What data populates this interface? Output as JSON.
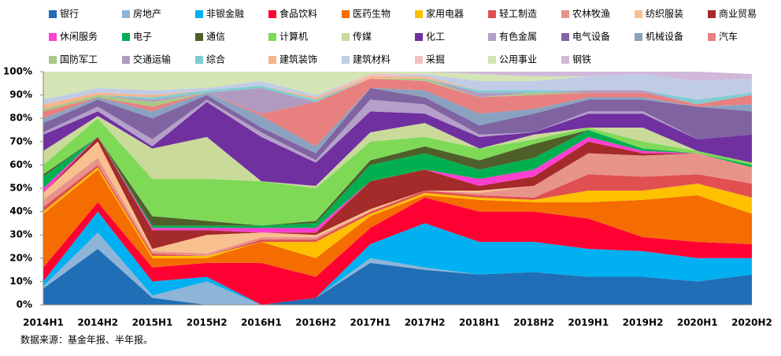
{
  "chart_data": {
    "type": "stacked-area",
    "categories": [
      "2014H1",
      "2014H2",
      "2015H1",
      "2015H2",
      "2016H1",
      "2016H2",
      "2017H1",
      "2017H2",
      "2018H1",
      "2018H2",
      "2019H1",
      "2019H2",
      "2020H1",
      "2020H2"
    ],
    "ylim": [
      0,
      100
    ],
    "yticks": [
      {
        "value": 0,
        "label": "0%"
      },
      {
        "value": 10,
        "label": "10%"
      },
      {
        "value": 20,
        "label": "20%"
      },
      {
        "value": 30,
        "label": "30%"
      },
      {
        "value": 40,
        "label": "40%"
      },
      {
        "value": 50,
        "label": "50%"
      },
      {
        "value": 60,
        "label": "60%"
      },
      {
        "value": 70,
        "label": "70%"
      },
      {
        "value": 80,
        "label": "80%"
      },
      {
        "value": 90,
        "label": "90%"
      },
      {
        "value": 100,
        "label": "100%"
      }
    ],
    "source": "数据来源：基金年报、半年报。",
    "series": [
      {
        "name": "银行",
        "color": "#1f6eb6",
        "values": [
          7,
          24,
          3,
          0,
          0,
          3,
          18,
          15,
          13,
          14,
          12,
          12,
          10,
          13
        ]
      },
      {
        "name": "房地产",
        "color": "#8eb4d8",
        "values": [
          1,
          7,
          1,
          10,
          0,
          0,
          2,
          1,
          0,
          0,
          0,
          0,
          0,
          0
        ]
      },
      {
        "name": "非银金融",
        "color": "#00b0f0",
        "values": [
          2,
          9,
          6,
          2,
          0,
          0,
          6,
          19,
          14,
          13,
          12,
          11,
          10,
          7
        ]
      },
      {
        "name": "食品饮料",
        "color": "#ff0033",
        "values": [
          6,
          4,
          6,
          6,
          18,
          9,
          7,
          11,
          13,
          13,
          13,
          6,
          7,
          6
        ]
      },
      {
        "name": "医药生物",
        "color": "#f56c00",
        "values": [
          23,
          14,
          4,
          2,
          9,
          8,
          5,
          1,
          5,
          4,
          7,
          16,
          20,
          13
        ]
      },
      {
        "name": "家用电器",
        "color": "#ffc000",
        "values": [
          1,
          1,
          1,
          1,
          0,
          7,
          1,
          1,
          1,
          1,
          5,
          4,
          5,
          7
        ]
      },
      {
        "name": "轻工制造",
        "color": "#e05050",
        "values": [
          2,
          1,
          1,
          0,
          1,
          1,
          1,
          1,
          1,
          1,
          7,
          6,
          4,
          6
        ]
      },
      {
        "name": "农林牧渔",
        "color": "#e8938a",
        "values": [
          3,
          3,
          1,
          1,
          1,
          1,
          0,
          0,
          1,
          5,
          9,
          9,
          9,
          7
        ]
      },
      {
        "name": "纺织服装",
        "color": "#f9c08f",
        "values": [
          3,
          7,
          1,
          8,
          2,
          1,
          1,
          0,
          1,
          0,
          0,
          0,
          0,
          0
        ]
      },
      {
        "name": "商业贸易",
        "color": "#a52a2a",
        "values": [
          0,
          2,
          8,
          2,
          0,
          1,
          12,
          9,
          2,
          4,
          5,
          1,
          0,
          0
        ]
      },
      {
        "name": "休闲服务",
        "color": "#ff3fd0",
        "values": [
          2,
          0,
          1,
          1,
          2,
          2,
          0,
          0,
          3,
          3,
          2,
          1,
          0,
          0
        ]
      },
      {
        "name": "电子",
        "color": "#00b050",
        "values": [
          5,
          0,
          1,
          1,
          1,
          2,
          7,
          7,
          4,
          5,
          3,
          1,
          0,
          1
        ]
      },
      {
        "name": "通信",
        "color": "#4f5f2a",
        "values": [
          1,
          0,
          4,
          2,
          0,
          1,
          2,
          3,
          4,
          6,
          0,
          0,
          0,
          0
        ]
      },
      {
        "name": "计算机",
        "color": "#7ed957",
        "values": [
          4,
          8,
          16,
          18,
          19,
          14,
          8,
          4,
          5,
          2,
          1,
          3,
          1,
          1
        ]
      },
      {
        "name": "传媒",
        "color": "#c9da9a",
        "values": [
          6,
          1,
          13,
          18,
          0,
          1,
          4,
          6,
          0,
          2,
          0,
          6,
          0,
          0
        ]
      },
      {
        "name": "化工",
        "color": "#7030a0",
        "values": [
          7,
          2,
          1,
          15,
          19,
          10,
          9,
          4,
          5,
          1,
          6,
          6,
          5,
          12
        ]
      },
      {
        "name": "有色金属",
        "color": "#b4a0c8",
        "values": [
          1,
          2,
          3,
          1,
          2,
          1,
          5,
          4,
          1,
          0,
          1,
          1,
          0,
          0
        ]
      },
      {
        "name": "电气设备",
        "color": "#8064a2",
        "values": [
          4,
          3,
          9,
          2,
          2,
          3,
          5,
          3,
          4,
          8,
          5,
          5,
          14,
          10
        ]
      },
      {
        "name": "机械设备",
        "color": "#8aa2c0",
        "values": [
          2,
          1,
          3,
          1,
          5,
          3,
          0,
          3,
          5,
          2,
          1,
          1,
          0,
          3
        ]
      },
      {
        "name": "汽车",
        "color": "#e88080",
        "values": [
          3,
          0,
          2,
          0,
          1,
          19,
          4,
          4,
          7,
          6,
          2,
          2,
          1,
          4
        ]
      },
      {
        "name": "国防军工",
        "color": "#a8c888",
        "values": [
          1,
          1,
          2,
          0,
          0,
          0,
          0,
          1,
          0,
          1,
          0,
          0,
          0,
          0
        ]
      },
      {
        "name": "交通运输",
        "color": "#b09ac0",
        "values": [
          0,
          0,
          1,
          0,
          11,
          0,
          0,
          0,
          2,
          0,
          1,
          1,
          0,
          0
        ]
      },
      {
        "name": "综合",
        "color": "#7fcdd0",
        "values": [
          0,
          0,
          1,
          1,
          1,
          1,
          0,
          0,
          1,
          1,
          0,
          0,
          2,
          1
        ]
      },
      {
        "name": "建筑装饰",
        "color": "#f7b48a",
        "values": [
          2,
          1,
          1,
          0,
          0,
          1,
          1,
          1,
          0,
          0,
          0,
          0,
          0,
          0
        ]
      },
      {
        "name": "建筑材料",
        "color": "#c0cce6",
        "values": [
          2,
          2,
          2,
          1,
          2,
          1,
          0,
          1,
          4,
          4,
          6,
          7,
          8,
          6
        ]
      },
      {
        "name": "采掘",
        "color": "#f2c0c0",
        "values": [
          0,
          0,
          0,
          0,
          0,
          0,
          1,
          0,
          0,
          0,
          0,
          0,
          0,
          0
        ]
      },
      {
        "name": "公用事业",
        "color": "#d4e4b4",
        "values": [
          12,
          7,
          8,
          7,
          4,
          10,
          1,
          1,
          3,
          2,
          0,
          0,
          0,
          0
        ]
      },
      {
        "name": "钢铁",
        "color": "#d0b8d8",
        "values": [
          0,
          0,
          0,
          0,
          0,
          0,
          0,
          0,
          1,
          2,
          2,
          1,
          4,
          2
        ]
      }
    ]
  }
}
